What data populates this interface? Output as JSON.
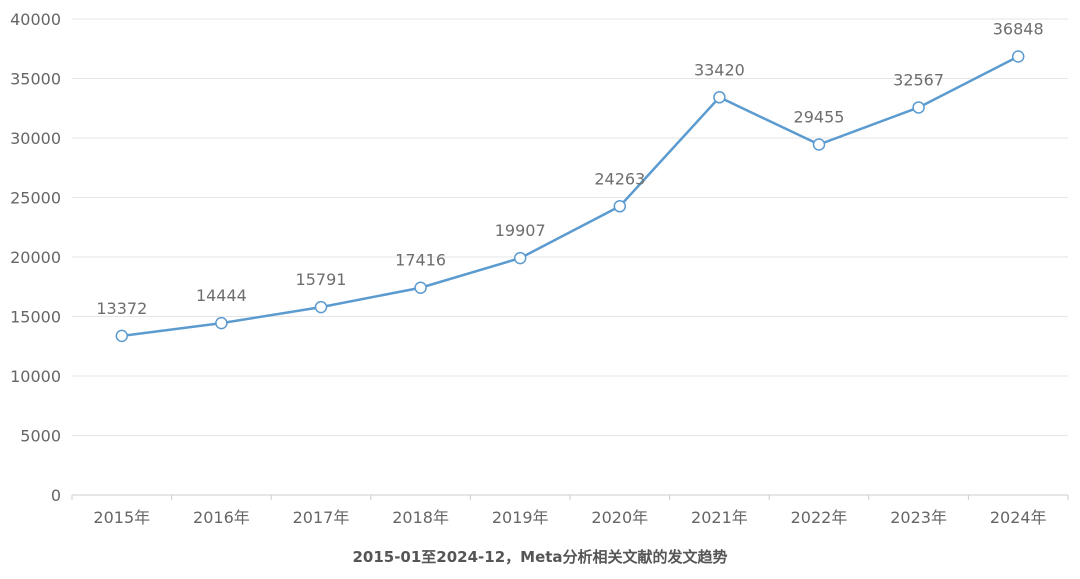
{
  "chart_data": {
    "type": "line",
    "title": "2015-01至2024-12，Meta分析相关文献的发文趋势",
    "categories": [
      "2015年",
      "2016年",
      "2017年",
      "2018年",
      "2019年",
      "2020年",
      "2021年",
      "2022年",
      "2023年",
      "2024年"
    ],
    "series": [
      {
        "values": [
          13372,
          14444,
          15791,
          17416,
          19907,
          24263,
          33420,
          29455,
          32567,
          36848
        ]
      }
    ],
    "ylim": [
      0,
      40000
    ],
    "yticks": [
      0,
      5000,
      10000,
      15000,
      20000,
      25000,
      30000,
      35000,
      40000
    ],
    "grid": "horizontal",
    "data_labels": true,
    "colors": {
      "line": "#5b9bd0",
      "marker_fill": "#ffffff",
      "grid": "#e6e6e6",
      "axis": "#cccccc"
    }
  }
}
